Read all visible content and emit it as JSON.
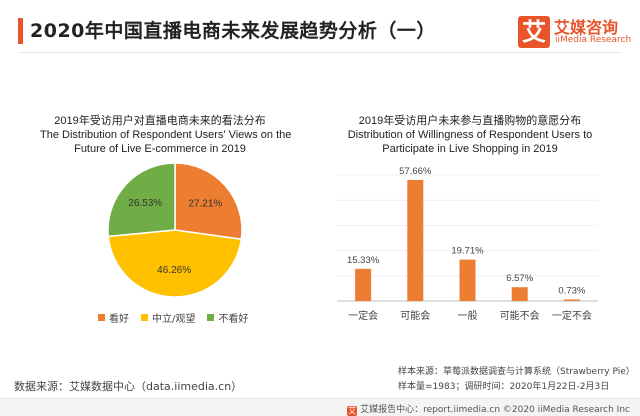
{
  "header": {
    "title": "2020年中国直播电商未来发展趋势分析（一）"
  },
  "logo": {
    "mark": "艾",
    "name_cn": "艾媒咨询",
    "name_en": "iiMedia Research"
  },
  "chart_data": [
    {
      "type": "pie",
      "title_cn": "2019年受访用户对直播电商未来的看法分布",
      "title_en_line1": "The Distribution of Respondent Users' Views on the",
      "title_en_line2": "Future of Live E-commerce in 2019",
      "slices": [
        {
          "label": "看好",
          "value": 27.21,
          "display": "27.21%",
          "color": "#ed7d31"
        },
        {
          "label": "中立/观望",
          "value": 46.26,
          "display": "46.26%",
          "color": "#ffc000"
        },
        {
          "label": "不看好",
          "value": 26.53,
          "display": "26.53%",
          "color": "#70ad47"
        }
      ],
      "legend_position": "bottom"
    },
    {
      "type": "bar",
      "title_cn": "2019年受访用户未来参与直播购物的意愿分布",
      "title_en_line1": "Distribution of Willingness of Respondent Users to",
      "title_en_line2": "Participate in Live Shopping in 2019",
      "categories": [
        "一定会",
        "可能会",
        "一般",
        "可能不会",
        "一定不会"
      ],
      "values": [
        15.33,
        57.66,
        19.71,
        6.57,
        0.73
      ],
      "labels": [
        "15.33%",
        "57.66%",
        "19.71%",
        "6.57%",
        "0.73%"
      ],
      "color": "#ed7d31",
      "ylim": [
        0,
        60
      ],
      "grid": true
    }
  ],
  "footnotes": {
    "source": "数据来源：艾媒数据中心（data.iimedia.cn）",
    "sample_source": "样本来源：草莓派数据调查与计算系统（Strawberry Pie）",
    "sample_size": "样本量=1983；调研时间：2020年1月22日-2月3日"
  },
  "footer": {
    "mark": "艾",
    "text": "艾媒报告中心：report.iimedia.cn  ©2020  iiMedia Research  Inc"
  }
}
